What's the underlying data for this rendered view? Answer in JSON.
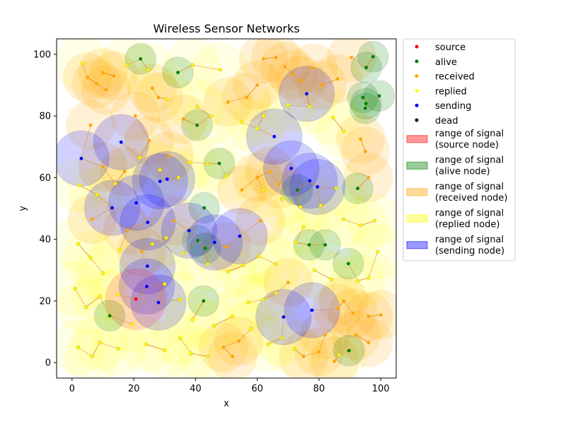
{
  "chart_data": {
    "type": "scatter",
    "title": "Wireless Sensor Networks",
    "xlabel": "x",
    "ylabel": "y",
    "xlim": [
      -5,
      105
    ],
    "ylim": [
      -5,
      105
    ],
    "xticks": [
      0,
      20,
      40,
      60,
      80,
      100
    ],
    "yticks": [
      0,
      20,
      40,
      60,
      80,
      100
    ],
    "grid": false,
    "legend_position": "outside-top-right",
    "legend": [
      {
        "label": "source",
        "kind": "marker",
        "color": "#ff0000"
      },
      {
        "label": "alive",
        "kind": "marker",
        "color": "#008000"
      },
      {
        "label": "received",
        "kind": "marker",
        "color": "#ffa500"
      },
      {
        "label": "replied",
        "kind": "marker",
        "color": "#ffff00"
      },
      {
        "label": "sending",
        "kind": "marker",
        "color": "#0000ff"
      },
      {
        "label": "dead",
        "kind": "marker",
        "color": "#000000"
      },
      {
        "label": "range of signal\n(source node)",
        "kind": "patch",
        "color": "#ff0000"
      },
      {
        "label": "range of signal\n(alive node)",
        "kind": "patch",
        "color": "#008000"
      },
      {
        "label": "range of signal\n(received node)",
        "kind": "patch",
        "color": "#ffa500"
      },
      {
        "label": "range of signal\n(replied node)",
        "kind": "patch",
        "color": "#ffff00"
      },
      {
        "label": "range of signal\n(sending node)",
        "kind": "patch",
        "color": "#0000ff"
      }
    ],
    "series": [
      {
        "name": "source",
        "color": "#ff0000",
        "radius": 10,
        "points": [
          [
            20.7,
            20.6
          ]
        ]
      },
      {
        "name": "alive",
        "color": "#008000",
        "radius": 5,
        "points": [
          [
            22.2,
            98.5
          ],
          [
            34.3,
            94.1
          ],
          [
            40.5,
            77.0
          ],
          [
            47.7,
            64.6
          ],
          [
            42.8,
            50.2
          ],
          [
            40.7,
            39.6
          ],
          [
            43.2,
            37.1
          ],
          [
            42.6,
            20.0
          ],
          [
            12.2,
            15.2
          ],
          [
            73.0,
            56.0
          ],
          [
            76.8,
            38.2
          ],
          [
            82.0,
            38.2
          ],
          [
            89.5,
            32.1
          ],
          [
            89.7,
            3.9
          ],
          [
            92.5,
            56.5
          ],
          [
            94.2,
            86.0
          ],
          [
            95.2,
            84.0
          ],
          [
            95.0,
            82.5
          ],
          [
            95.3,
            95.7
          ],
          [
            97.5,
            99.2
          ],
          [
            99.5,
            86.5
          ]
        ]
      },
      {
        "name": "sending",
        "color": "#0000ff",
        "radius": 9,
        "points": [
          [
            3.0,
            66.2
          ],
          [
            15.9,
            71.5
          ],
          [
            13.0,
            50.2
          ],
          [
            20.8,
            51.8
          ],
          [
            24.5,
            45.5
          ],
          [
            28.5,
            58.8
          ],
          [
            30.8,
            59.5
          ],
          [
            37.9,
            42.8
          ],
          [
            46.2,
            39.0
          ],
          [
            54.3,
            41.0
          ],
          [
            24.4,
            31.3
          ],
          [
            24.2,
            24.7
          ],
          [
            28.0,
            19.5
          ],
          [
            65.5,
            73.3
          ],
          [
            71.0,
            63.0
          ],
          [
            77.0,
            59.0
          ],
          [
            79.5,
            57.0
          ],
          [
            76.0,
            87.2
          ],
          [
            68.5,
            14.8
          ],
          [
            77.7,
            17.0
          ]
        ]
      },
      {
        "name": "received",
        "color": "#ffa500",
        "radius": 8,
        "points": [
          [
            5.0,
            92.5
          ],
          [
            10.0,
            94.0
          ],
          [
            13.5,
            93.0
          ],
          [
            8.0,
            90.5
          ],
          [
            11.0,
            88.5
          ],
          [
            26.0,
            89.0
          ],
          [
            28.0,
            86.0
          ],
          [
            20.5,
            80.0
          ],
          [
            36.0,
            79.0
          ],
          [
            50.5,
            84.5
          ],
          [
            56.5,
            86.0
          ],
          [
            60.0,
            90.0
          ],
          [
            62.0,
            98.5
          ],
          [
            66.0,
            99.0
          ],
          [
            69.0,
            96.0
          ],
          [
            71.5,
            93.5
          ],
          [
            74.0,
            91.5
          ],
          [
            78.0,
            95.5
          ],
          [
            81.0,
            90.0
          ],
          [
            86.0,
            92.0
          ],
          [
            90.5,
            99.0
          ],
          [
            93.5,
            72.5
          ],
          [
            95.0,
            68.5
          ],
          [
            6.0,
            77.0
          ],
          [
            10.0,
            63.5
          ],
          [
            17.0,
            62.0
          ],
          [
            25.0,
            72.0
          ],
          [
            31.5,
            67.0
          ],
          [
            55.0,
            56.0
          ],
          [
            60.0,
            60.0
          ],
          [
            64.0,
            62.0
          ],
          [
            67.0,
            58.0
          ],
          [
            96.0,
            60.0
          ],
          [
            6.5,
            46.5
          ],
          [
            18.0,
            43.0
          ],
          [
            22.5,
            36.0
          ],
          [
            33.0,
            46.0
          ],
          [
            50.0,
            37.5
          ],
          [
            61.0,
            46.0
          ],
          [
            70.0,
            26.0
          ],
          [
            86.0,
            17.5
          ],
          [
            91.0,
            16.0
          ],
          [
            96.0,
            15.0
          ],
          [
            100.0,
            15.5
          ],
          [
            82.0,
            9.0
          ],
          [
            92.0,
            9.0
          ],
          [
            96.0,
            6.5
          ],
          [
            49.0,
            5.0
          ],
          [
            52.0,
            2.0
          ],
          [
            54.0,
            7.0
          ],
          [
            80.0,
            3.5
          ],
          [
            85.0,
            0.5
          ],
          [
            75.0,
            2.0
          ],
          [
            88.0,
            20.0
          ]
        ]
      },
      {
        "name": "replied",
        "color": "#ffff00",
        "radius": 9,
        "points": [
          [
            3.5,
            97.0
          ],
          [
            18.0,
            96.5
          ],
          [
            24.5,
            95.0
          ],
          [
            39.0,
            96.5
          ],
          [
            48.0,
            95.0
          ],
          [
            30.5,
            85.5
          ],
          [
            40.5,
            83.0
          ],
          [
            45.0,
            80.0
          ],
          [
            55.0,
            78.0
          ],
          [
            60.0,
            76.0
          ],
          [
            62.0,
            80.0
          ],
          [
            70.0,
            83.5
          ],
          [
            77.0,
            83.0
          ],
          [
            84.5,
            79.5
          ],
          [
            88.0,
            75.0
          ],
          [
            2.5,
            57.5
          ],
          [
            8.0,
            54.5
          ],
          [
            14.0,
            58.0
          ],
          [
            22.0,
            66.5
          ],
          [
            28.5,
            62.5
          ],
          [
            34.5,
            60.0
          ],
          [
            38.0,
            65.0
          ],
          [
            44.0,
            64.5
          ],
          [
            50.0,
            60.5
          ],
          [
            62.0,
            56.0
          ],
          [
            68.0,
            53.0
          ],
          [
            74.0,
            50.5
          ],
          [
            80.5,
            51.0
          ],
          [
            85.5,
            56.5
          ],
          [
            88.0,
            46.5
          ],
          [
            93.5,
            44.5
          ],
          [
            98.0,
            46.0
          ],
          [
            2.0,
            38.5
          ],
          [
            6.0,
            34.0
          ],
          [
            10.0,
            29.0
          ],
          [
            15.5,
            36.5
          ],
          [
            26.0,
            38.5
          ],
          [
            30.5,
            40.5
          ],
          [
            36.0,
            35.5
          ],
          [
            44.0,
            32.0
          ],
          [
            50.5,
            29.5
          ],
          [
            55.5,
            31.5
          ],
          [
            60.5,
            34.5
          ],
          [
            66.0,
            32.0
          ],
          [
            72.5,
            39.0
          ],
          [
            75.0,
            44.0
          ],
          [
            78.5,
            30.0
          ],
          [
            84.0,
            27.0
          ],
          [
            96.0,
            27.5
          ],
          [
            99.0,
            36.0
          ],
          [
            1.0,
            24.0
          ],
          [
            4.5,
            18.0
          ],
          [
            9.0,
            21.5
          ],
          [
            15.0,
            22.0
          ],
          [
            30.0,
            25.5
          ],
          [
            35.0,
            20.5
          ],
          [
            39.0,
            14.0
          ],
          [
            46.0,
            12.0
          ],
          [
            52.0,
            15.0
          ],
          [
            57.0,
            19.5
          ],
          [
            58.0,
            11.0
          ],
          [
            62.0,
            20.5
          ],
          [
            66.0,
            22.5
          ],
          [
            63.5,
            6.0
          ],
          [
            2.0,
            5.0
          ],
          [
            6.5,
            2.0
          ],
          [
            9.0,
            6.5
          ],
          [
            15.0,
            4.5
          ],
          [
            19.5,
            12.5
          ],
          [
            24.0,
            6.0
          ],
          [
            30.0,
            4.0
          ],
          [
            35.0,
            8.0
          ],
          [
            38.5,
            3.0
          ],
          [
            44.0,
            2.0
          ],
          [
            68.0,
            8.0
          ],
          [
            72.0,
            4.5
          ],
          [
            86.5,
            2.5
          ],
          [
            92.5,
            26.5
          ]
        ]
      },
      {
        "name": "dead",
        "color": "#000000",
        "radius": 5,
        "points": []
      }
    ]
  }
}
